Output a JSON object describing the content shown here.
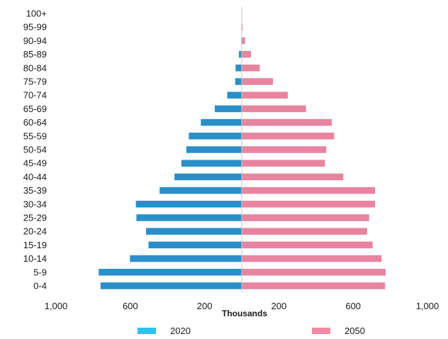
{
  "chart_data": {
    "type": "bar",
    "orientation": "horizontal",
    "subtype": "population-pyramid",
    "title": "",
    "xlabel": "Thousands",
    "ylabel": "",
    "categories": [
      "100+",
      "95-99",
      "90-94",
      "85-89",
      "80-84",
      "75-79",
      "70-74",
      "65-69",
      "60-64",
      "55-59",
      "50-54",
      "45-49",
      "40-44",
      "35-39",
      "30-34",
      "25-29",
      "20-24",
      "15-19",
      "10-14",
      "5-9",
      "0-4"
    ],
    "xlim": [
      -1000,
      1000
    ],
    "xticks": [
      -1000,
      -600,
      -200,
      200,
      600,
      1000
    ],
    "xtick_labels": [
      "1,000",
      "600",
      "200",
      "200",
      "600",
      "1,000"
    ],
    "grid": false,
    "legend_position": "bottom",
    "series": [
      {
        "name": "2020",
        "side": "left",
        "color": "#2a8fc9",
        "legend_color": "#33c0f0",
        "values": [
          1,
          2,
          3,
          15,
          33,
          35,
          78,
          145,
          220,
          285,
          298,
          325,
          362,
          442,
          570,
          567,
          515,
          502,
          602,
          770,
          760
        ]
      },
      {
        "name": "2050",
        "side": "right",
        "color": "#e8849f",
        "legend_color": "#f08aa5",
        "values": [
          2,
          5,
          18,
          50,
          97,
          168,
          248,
          346,
          485,
          498,
          455,
          448,
          547,
          718,
          718,
          686,
          675,
          705,
          753,
          775,
          772
        ]
      }
    ]
  }
}
